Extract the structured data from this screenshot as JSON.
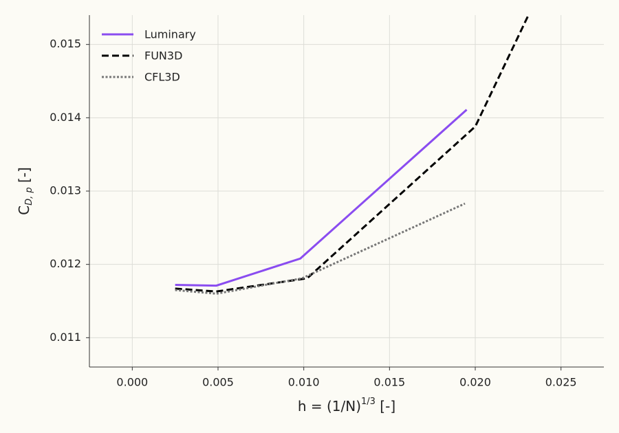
{
  "chart_data": {
    "type": "line",
    "x_label": {
      "base": "h = (1/N)",
      "sup": "1/3",
      "tail": " [-]"
    },
    "y_label": {
      "base": "C",
      "sub": "D, p",
      "tail": " [-]"
    },
    "xlim": [
      -0.0025,
      0.0275
    ],
    "xticks": [
      {
        "value": 0,
        "label": "0.000"
      },
      0.005,
      {
        "value": 0.01,
        "label": "0.010"
      },
      0.015,
      {
        "value": 0.02,
        "label": "0.020"
      },
      0.025
    ],
    "ylim": [
      0.0106,
      0.0154
    ],
    "yticks": [
      0.011,
      0.012,
      0.013,
      0.014,
      0.015
    ],
    "grid": true,
    "legend": "upper left",
    "series": [
      {
        "name": "Luminary",
        "color": "#8a4cf0",
        "style": "solid",
        "x": [
          0.0025,
          0.0049,
          0.0098,
          0.0195
        ],
        "values": [
          0.01172,
          0.01171,
          0.01208,
          0.01411
        ]
      },
      {
        "name": "FUN3D",
        "color": "#000000",
        "style": "dashed",
        "x": [
          0.0025,
          0.0049,
          0.0102,
          0.02,
          0.0231
        ],
        "values": [
          0.01167,
          0.01163,
          0.01181,
          0.01388,
          0.0154
        ]
      },
      {
        "name": "CFL3D",
        "color": "#777777",
        "style": "dotted",
        "x": [
          0.0025,
          0.0049,
          0.0099,
          0.0194
        ],
        "values": [
          0.01165,
          0.0116,
          0.01181,
          0.01283
        ]
      }
    ]
  }
}
